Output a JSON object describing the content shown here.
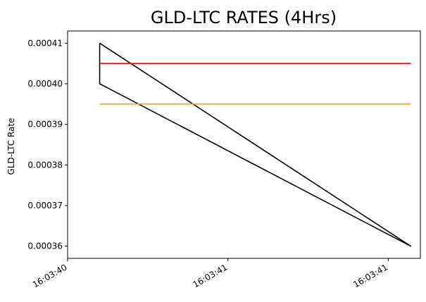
{
  "chart_data": {
    "type": "line",
    "title": "GLD-LTC RATES (4Hrs)",
    "xlabel": "",
    "ylabel": "GLD-LTC Rate",
    "x_tick_labels": [
      "16:03:40",
      "16:03:41",
      "16:03:41"
    ],
    "y_tick_labels": [
      "0.00036",
      "0.00037",
      "0.00038",
      "0.00039",
      "0.00040",
      "0.00041"
    ],
    "y_ticks": [
      0.00036,
      0.00037,
      0.00038,
      0.00039,
      0.0004,
      0.00041
    ],
    "x_range": [
      0,
      1.1
    ],
    "ylim": [
      0.000357,
      0.000413
    ],
    "grid": false,
    "series": [
      {
        "color": "#000000",
        "points": [
          {
            "x": 0.1,
            "y": 0.00041
          },
          {
            "x": 0.1,
            "y": 0.0004
          },
          {
            "x": 1.07,
            "y": 0.00036
          },
          {
            "x": 0.1,
            "y": 0.00041
          }
        ]
      },
      {
        "color": "#ff0000",
        "points": [
          {
            "x": 0.1,
            "y": 0.000405
          },
          {
            "x": 1.07,
            "y": 0.000405
          }
        ]
      },
      {
        "color": "#ffa500",
        "points": [
          {
            "x": 0.1,
            "y": 0.000395
          },
          {
            "x": 1.07,
            "y": 0.000395
          }
        ]
      }
    ]
  }
}
